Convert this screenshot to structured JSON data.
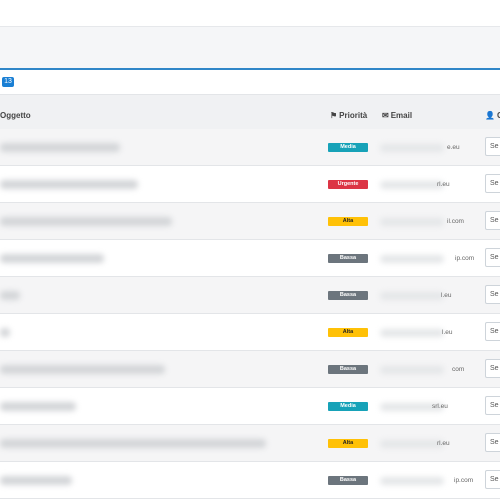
{
  "toolbar": {
    "count": "13"
  },
  "table": {
    "columns": {
      "subject": "Oggetto",
      "priority": "Priorità",
      "email": "Email",
      "client": "Cl"
    },
    "icons": {
      "priority": "flag-icon",
      "email": "envelope-icon",
      "client": "user-icon"
    },
    "priority_colors": {
      "Media": "#17a2b8",
      "Urgente": "#dc3545",
      "Alta": "#ffc107",
      "Bassa": "#6c757d"
    },
    "rows": [
      {
        "priority": "Media",
        "email_suffix": "e.eu",
        "select_label": "Se"
      },
      {
        "priority": "Urgente",
        "email_suffix": "rl.eu",
        "select_label": "Se"
      },
      {
        "priority": "Alta",
        "email_suffix": "il.com",
        "select_label": "Se"
      },
      {
        "priority": "Bassa",
        "email_suffix": "ip.com",
        "select_label": "Se"
      },
      {
        "priority": "Bassa",
        "email_suffix": "l.eu",
        "select_label": "Se"
      },
      {
        "priority": "Alta",
        "email_suffix": "l.eu",
        "select_label": "Se"
      },
      {
        "priority": "Bassa",
        "email_suffix": "com",
        "select_label": "Se"
      },
      {
        "priority": "Media",
        "email_suffix": "srl.eu",
        "select_label": "Se"
      },
      {
        "priority": "Alta",
        "email_suffix": "rl.eu",
        "select_label": "Se"
      },
      {
        "priority": "Bassa",
        "email_suffix": "ip.com",
        "select_label": "Se"
      }
    ]
  }
}
